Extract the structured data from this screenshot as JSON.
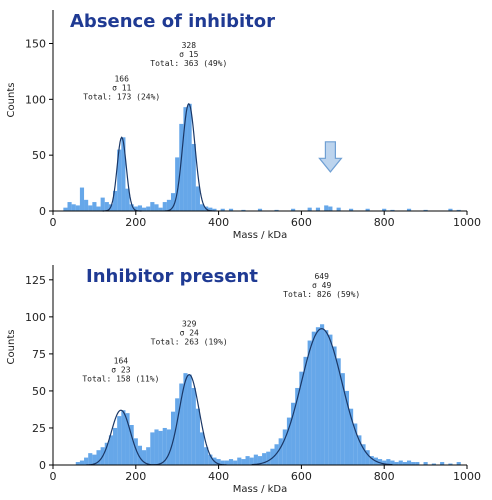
{
  "chart_data": [
    {
      "type": "bar",
      "title": "Absence of inhibitor",
      "xlabel": "Mass / kDa",
      "ylabel": "Counts",
      "xlim": [
        0,
        1000
      ],
      "ylim": [
        0,
        180
      ],
      "xticks": [
        0,
        200,
        400,
        600,
        800,
        1000
      ],
      "yticks": [
        0,
        50,
        100,
        150
      ],
      "bin_width": 10,
      "bins": [
        {
          "x": 30,
          "y": 3
        },
        {
          "x": 40,
          "y": 8
        },
        {
          "x": 50,
          "y": 6
        },
        {
          "x": 60,
          "y": 5
        },
        {
          "x": 70,
          "y": 21
        },
        {
          "x": 80,
          "y": 10
        },
        {
          "x": 90,
          "y": 5
        },
        {
          "x": 100,
          "y": 8
        },
        {
          "x": 110,
          "y": 4
        },
        {
          "x": 120,
          "y": 12
        },
        {
          "x": 130,
          "y": 8
        },
        {
          "x": 140,
          "y": 6
        },
        {
          "x": 150,
          "y": 18
        },
        {
          "x": 160,
          "y": 55
        },
        {
          "x": 170,
          "y": 66
        },
        {
          "x": 180,
          "y": 20
        },
        {
          "x": 190,
          "y": 6
        },
        {
          "x": 200,
          "y": 4
        },
        {
          "x": 210,
          "y": 5
        },
        {
          "x": 220,
          "y": 3
        },
        {
          "x": 230,
          "y": 4
        },
        {
          "x": 240,
          "y": 8
        },
        {
          "x": 250,
          "y": 6
        },
        {
          "x": 260,
          "y": 3
        },
        {
          "x": 270,
          "y": 8
        },
        {
          "x": 280,
          "y": 10
        },
        {
          "x": 290,
          "y": 16
        },
        {
          "x": 300,
          "y": 48
        },
        {
          "x": 310,
          "y": 78
        },
        {
          "x": 320,
          "y": 93
        },
        {
          "x": 330,
          "y": 96
        },
        {
          "x": 340,
          "y": 60
        },
        {
          "x": 350,
          "y": 22
        },
        {
          "x": 360,
          "y": 6
        },
        {
          "x": 370,
          "y": 4
        },
        {
          "x": 380,
          "y": 3
        },
        {
          "x": 390,
          "y": 2
        },
        {
          "x": 410,
          "y": 2
        },
        {
          "x": 430,
          "y": 2
        },
        {
          "x": 460,
          "y": 1
        },
        {
          "x": 500,
          "y": 2
        },
        {
          "x": 540,
          "y": 1
        },
        {
          "x": 580,
          "y": 2
        },
        {
          "x": 620,
          "y": 3
        },
        {
          "x": 640,
          "y": 3
        },
        {
          "x": 660,
          "y": 5
        },
        {
          "x": 670,
          "y": 4
        },
        {
          "x": 690,
          "y": 3
        },
        {
          "x": 720,
          "y": 2
        },
        {
          "x": 760,
          "y": 2
        },
        {
          "x": 800,
          "y": 2
        },
        {
          "x": 820,
          "y": 1
        },
        {
          "x": 860,
          "y": 2
        },
        {
          "x": 900,
          "y": 1
        },
        {
          "x": 960,
          "y": 2
        },
        {
          "x": 980,
          "y": 1
        }
      ],
      "fits": [
        {
          "mu": 166,
          "sigma": 11,
          "amp": 66,
          "xmin": 120,
          "xmax": 215
        },
        {
          "mu": 328,
          "sigma": 15,
          "amp": 96,
          "xmin": 270,
          "xmax": 390
        }
      ],
      "annotations": [
        {
          "lines": [
            "166",
            "σ 11",
            "Total: 173 (24%)"
          ],
          "x": 166,
          "y": 98
        },
        {
          "lines": [
            "328",
            "σ 15",
            "Total: 363 (49%)"
          ],
          "x": 328,
          "y": 128
        }
      ],
      "arrow": {
        "x": 670,
        "y_top": 62,
        "y_bottom": 35,
        "fill": "#bcd4ee",
        "stroke": "#6f9fd3"
      },
      "bar_color": "#3b8ee3",
      "fit_color": "#1a3766"
    },
    {
      "type": "bar",
      "title": "Inhibitor present",
      "xlabel": "Mass / kDa",
      "ylabel": "Counts",
      "xlim": [
        0,
        1000
      ],
      "ylim": [
        0,
        135
      ],
      "xticks": [
        0,
        200,
        400,
        600,
        800,
        1000
      ],
      "yticks": [
        0,
        25,
        50,
        75,
        100,
        125
      ],
      "bin_width": 10,
      "bins": [
        {
          "x": 60,
          "y": 2
        },
        {
          "x": 70,
          "y": 3
        },
        {
          "x": 80,
          "y": 5
        },
        {
          "x": 90,
          "y": 8
        },
        {
          "x": 100,
          "y": 7
        },
        {
          "x": 110,
          "y": 10
        },
        {
          "x": 120,
          "y": 12
        },
        {
          "x": 130,
          "y": 15
        },
        {
          "x": 140,
          "y": 20
        },
        {
          "x": 150,
          "y": 25
        },
        {
          "x": 160,
          "y": 33
        },
        {
          "x": 170,
          "y": 37
        },
        {
          "x": 180,
          "y": 35
        },
        {
          "x": 190,
          "y": 27
        },
        {
          "x": 200,
          "y": 18
        },
        {
          "x": 210,
          "y": 13
        },
        {
          "x": 220,
          "y": 10
        },
        {
          "x": 230,
          "y": 12
        },
        {
          "x": 240,
          "y": 22
        },
        {
          "x": 250,
          "y": 24
        },
        {
          "x": 260,
          "y": 23
        },
        {
          "x": 270,
          "y": 25
        },
        {
          "x": 280,
          "y": 24
        },
        {
          "x": 290,
          "y": 36
        },
        {
          "x": 300,
          "y": 45
        },
        {
          "x": 310,
          "y": 55
        },
        {
          "x": 320,
          "y": 62
        },
        {
          "x": 330,
          "y": 61
        },
        {
          "x": 340,
          "y": 52
        },
        {
          "x": 350,
          "y": 38
        },
        {
          "x": 360,
          "y": 22
        },
        {
          "x": 370,
          "y": 12
        },
        {
          "x": 380,
          "y": 7
        },
        {
          "x": 390,
          "y": 5
        },
        {
          "x": 400,
          "y": 4
        },
        {
          "x": 410,
          "y": 3
        },
        {
          "x": 420,
          "y": 3
        },
        {
          "x": 430,
          "y": 4
        },
        {
          "x": 440,
          "y": 3
        },
        {
          "x": 450,
          "y": 5
        },
        {
          "x": 460,
          "y": 4
        },
        {
          "x": 470,
          "y": 6
        },
        {
          "x": 480,
          "y": 5
        },
        {
          "x": 490,
          "y": 7
        },
        {
          "x": 500,
          "y": 6
        },
        {
          "x": 510,
          "y": 8
        },
        {
          "x": 520,
          "y": 9
        },
        {
          "x": 530,
          "y": 11
        },
        {
          "x": 540,
          "y": 14
        },
        {
          "x": 550,
          "y": 18
        },
        {
          "x": 560,
          "y": 24
        },
        {
          "x": 570,
          "y": 32
        },
        {
          "x": 580,
          "y": 42
        },
        {
          "x": 590,
          "y": 52
        },
        {
          "x": 600,
          "y": 63
        },
        {
          "x": 610,
          "y": 73
        },
        {
          "x": 620,
          "y": 84
        },
        {
          "x": 630,
          "y": 90
        },
        {
          "x": 640,
          "y": 93
        },
        {
          "x": 650,
          "y": 95
        },
        {
          "x": 660,
          "y": 91
        },
        {
          "x": 670,
          "y": 88
        },
        {
          "x": 680,
          "y": 80
        },
        {
          "x": 690,
          "y": 72
        },
        {
          "x": 700,
          "y": 62
        },
        {
          "x": 710,
          "y": 50
        },
        {
          "x": 720,
          "y": 38
        },
        {
          "x": 730,
          "y": 28
        },
        {
          "x": 740,
          "y": 20
        },
        {
          "x": 750,
          "y": 14
        },
        {
          "x": 760,
          "y": 10
        },
        {
          "x": 770,
          "y": 6
        },
        {
          "x": 780,
          "y": 5
        },
        {
          "x": 790,
          "y": 4
        },
        {
          "x": 800,
          "y": 3
        },
        {
          "x": 810,
          "y": 4
        },
        {
          "x": 820,
          "y": 3
        },
        {
          "x": 830,
          "y": 2
        },
        {
          "x": 840,
          "y": 3
        },
        {
          "x": 850,
          "y": 2
        },
        {
          "x": 860,
          "y": 3
        },
        {
          "x": 870,
          "y": 2
        },
        {
          "x": 880,
          "y": 2
        },
        {
          "x": 900,
          "y": 2
        },
        {
          "x": 920,
          "y": 1
        },
        {
          "x": 940,
          "y": 2
        },
        {
          "x": 960,
          "y": 1
        },
        {
          "x": 980,
          "y": 2
        }
      ],
      "fits": [
        {
          "mu": 164,
          "sigma": 23,
          "amp": 37,
          "xmin": 80,
          "xmax": 250
        },
        {
          "mu": 329,
          "sigma": 24,
          "amp": 61,
          "xmin": 240,
          "xmax": 420
        },
        {
          "mu": 649,
          "sigma": 49,
          "amp": 92,
          "xmin": 480,
          "xmax": 820
        }
      ],
      "annotations": [
        {
          "lines": [
            "164",
            "σ 23",
            "Total: 158 (11%)"
          ],
          "x": 164,
          "y": 55
        },
        {
          "lines": [
            "329",
            "σ 24",
            "Total: 263 (19%)"
          ],
          "x": 329,
          "y": 80
        },
        {
          "lines": [
            "649",
            "σ 49",
            "Total: 826 (59%)"
          ],
          "x": 649,
          "y": 112
        }
      ],
      "bar_color": "#3b8ee3",
      "fit_color": "#1a3766"
    }
  ]
}
